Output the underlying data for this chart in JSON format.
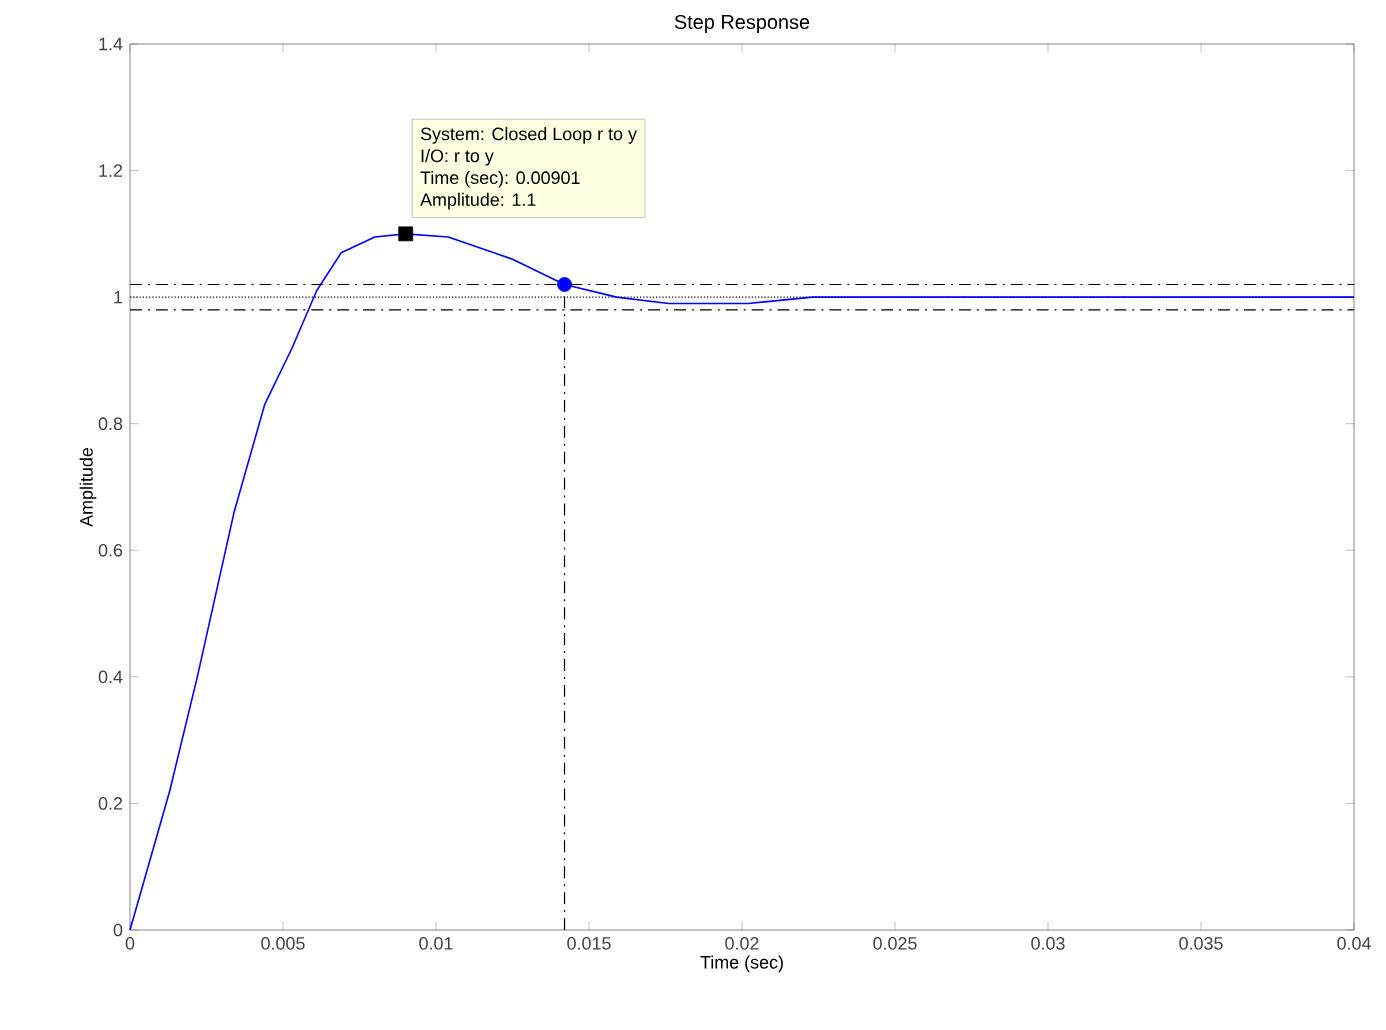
{
  "chart_data": {
    "type": "line",
    "title": "Step Response",
    "xlabel": "Time (sec)",
    "ylabel": "Amplitude",
    "xlim": [
      0,
      0.04
    ],
    "ylim": [
      0,
      1.4
    ],
    "xticks": [
      0,
      0.005,
      0.01,
      0.015,
      0.02,
      0.025,
      0.03,
      0.035,
      0.04
    ],
    "yticks": [
      0,
      0.2,
      0.4,
      0.6,
      0.8,
      1,
      1.2,
      1.4
    ],
    "series": [
      {
        "color": "#0000ff",
        "x": [
          0,
          0.0013,
          0.0022,
          0.0034,
          0.0044,
          0.0053,
          0.0061,
          0.0069,
          0.008,
          0.009,
          0.0104,
          0.0125,
          0.0142,
          0.0159,
          0.0176,
          0.0202,
          0.0223,
          0.03,
          0.04
        ],
        "values": [
          0,
          0.22,
          0.4,
          0.66,
          0.83,
          0.92,
          1.01,
          1.07,
          1.095,
          1.1,
          1.095,
          1.06,
          1.02,
          1.0,
          0.99,
          0.99,
          1.0,
          1.0,
          1.0
        ]
      },
      {
        "type": "scatter",
        "color": "#000000",
        "marker": "square",
        "x": [
          0.00901
        ],
        "values": [
          1.1
        ]
      },
      {
        "type": "scatter",
        "color": "#0000ff",
        "marker": "circle",
        "x": [
          0.0142
        ],
        "values": [
          1.02
        ]
      }
    ],
    "ref_lines": [
      {
        "axis": "y",
        "value": 1.02,
        "color": "#000000",
        "line_style": "dashdot"
      },
      {
        "axis": "y",
        "value": 0.98,
        "color": "#000000",
        "line_style": "dashdot"
      },
      {
        "axis": "y",
        "value": 1,
        "color": "#000000",
        "line_style": "dotted"
      },
      {
        "axis": "x",
        "value": 0.0142,
        "color": "#000000",
        "line_style": "dashdot"
      }
    ],
    "annotations": [
      "System: Closed Loop r to y",
      "I/O: r to y",
      "Time (sec): 0.00901",
      "Amplitude: 1.1"
    ],
    "grid": false
  }
}
